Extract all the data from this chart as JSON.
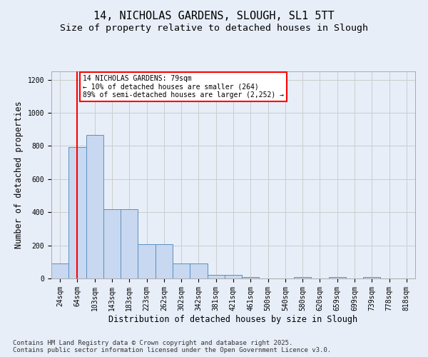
{
  "title_line1": "14, NICHOLAS GARDENS, SLOUGH, SL1 5TT",
  "title_line2": "Size of property relative to detached houses in Slough",
  "xlabel": "Distribution of detached houses by size in Slough",
  "ylabel": "Number of detached properties",
  "categories": [
    "24sqm",
    "64sqm",
    "103sqm",
    "143sqm",
    "183sqm",
    "223sqm",
    "262sqm",
    "302sqm",
    "342sqm",
    "381sqm",
    "421sqm",
    "461sqm",
    "500sqm",
    "540sqm",
    "580sqm",
    "620sqm",
    "659sqm",
    "699sqm",
    "739sqm",
    "778sqm",
    "818sqm"
  ],
  "values": [
    90,
    795,
    865,
    420,
    420,
    205,
    205,
    90,
    90,
    20,
    20,
    10,
    0,
    0,
    10,
    0,
    10,
    0,
    10,
    0,
    0
  ],
  "bar_color": "#c8d8f0",
  "bar_edge_color": "#5a8fc0",
  "vline_x": 1,
  "vline_color": "red",
  "annotation_text": "14 NICHOLAS GARDENS: 79sqm\n← 10% of detached houses are smaller (264)\n89% of semi-detached houses are larger (2,252) →",
  "annotation_box_color": "white",
  "annotation_box_edge": "red",
  "ylim": [
    0,
    1250
  ],
  "yticks": [
    0,
    200,
    400,
    600,
    800,
    1000,
    1200
  ],
  "grid_color": "#cccccc",
  "background_color": "#e8eef8",
  "footer_line1": "Contains HM Land Registry data © Crown copyright and database right 2025.",
  "footer_line2": "Contains public sector information licensed under the Open Government Licence v3.0.",
  "title_fontsize": 11,
  "subtitle_fontsize": 9.5,
  "tick_fontsize": 7,
  "label_fontsize": 8.5,
  "footer_fontsize": 6.5
}
